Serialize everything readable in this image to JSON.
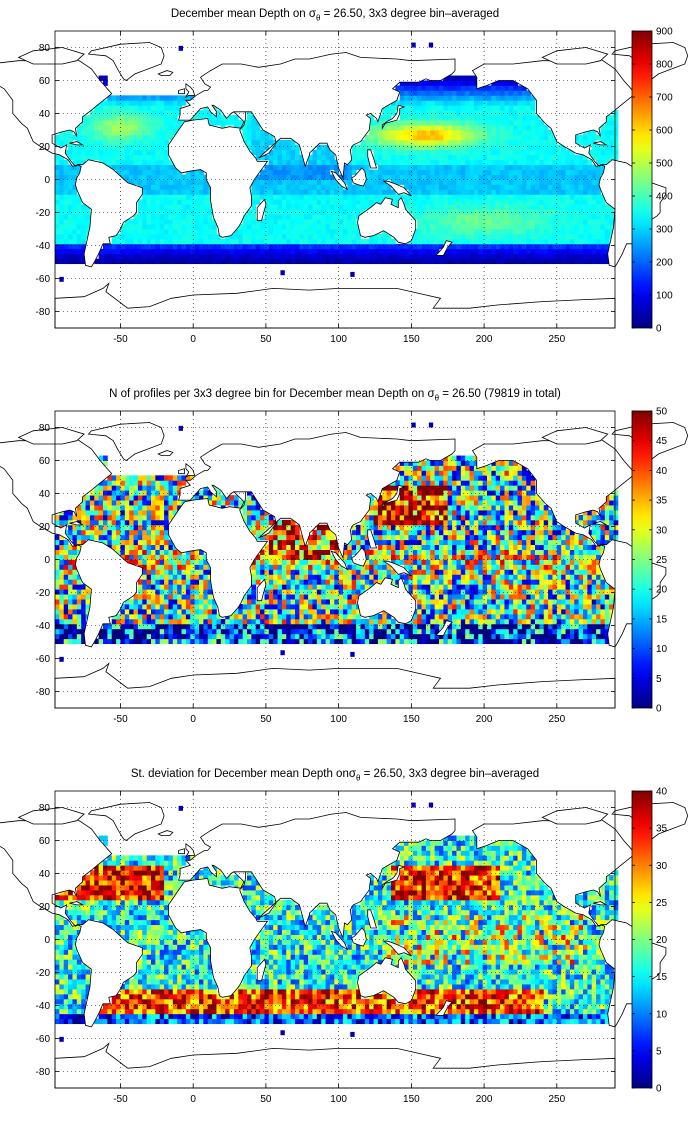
{
  "colors": {
    "land": "#ffffff",
    "coast": "#000000",
    "grid": "#000000",
    "frame": "#000000"
  },
  "chart_data": [
    {
      "type": "heatmap",
      "title": {
        "pre": "December mean Depth on σ",
        "sub": "θ",
        "post": " = 26.50, 3x3 degree bin–averaged"
      },
      "xlim": [
        -95,
        290
      ],
      "ylim": [
        -90,
        90
      ],
      "xticks": [
        "-50",
        "0",
        "50",
        "100",
        "150",
        "200",
        "250"
      ],
      "yticks": [
        "80",
        "60",
        "40",
        "20",
        "0",
        "-20",
        "-40",
        "-60",
        "-80"
      ],
      "grid": true,
      "colorbar": {
        "ticks": [
          "900",
          "800",
          "700",
          "600",
          "500",
          "400",
          "300",
          "200",
          "100",
          "0"
        ],
        "range": [
          0,
          900
        ]
      },
      "field": "mean-depth"
    },
    {
      "type": "heatmap",
      "title": {
        "pre": "N of profiles per 3x3 degree bin for December mean Depth on σ",
        "sub": "θ",
        "post": " = 26.50 (79819 in total)"
      },
      "xlim": [
        -95,
        290
      ],
      "ylim": [
        -90,
        90
      ],
      "xticks": [
        "-50",
        "0",
        "50",
        "100",
        "150",
        "200",
        "250"
      ],
      "yticks": [
        "80",
        "60",
        "40",
        "20",
        "0",
        "-20",
        "-40",
        "-60",
        "-80"
      ],
      "grid": true,
      "colorbar": {
        "ticks": [
          "50",
          "45",
          "40",
          "35",
          "30",
          "25",
          "20",
          "15",
          "10",
          "5",
          "0"
        ],
        "range": [
          0,
          50
        ]
      },
      "field": "profile-count"
    },
    {
      "type": "heatmap",
      "title": {
        "pre": "St. deviation for December mean Depth onσ",
        "sub": "θ",
        "post": " = 26.50, 3x3 degree bin–averaged"
      },
      "xlim": [
        -95,
        290
      ],
      "ylim": [
        -90,
        90
      ],
      "xticks": [
        "-50",
        "0",
        "50",
        "100",
        "150",
        "200",
        "250"
      ],
      "yticks": [
        "80",
        "60",
        "40",
        "20",
        "0",
        "-20",
        "-40",
        "-60",
        "-80"
      ],
      "grid": true,
      "colorbar": {
        "ticks": [
          "40",
          "35",
          "30",
          "25",
          "20",
          "15",
          "10",
          "5",
          "0"
        ],
        "range": [
          0,
          40
        ]
      },
      "field": "std-deviation"
    }
  ]
}
